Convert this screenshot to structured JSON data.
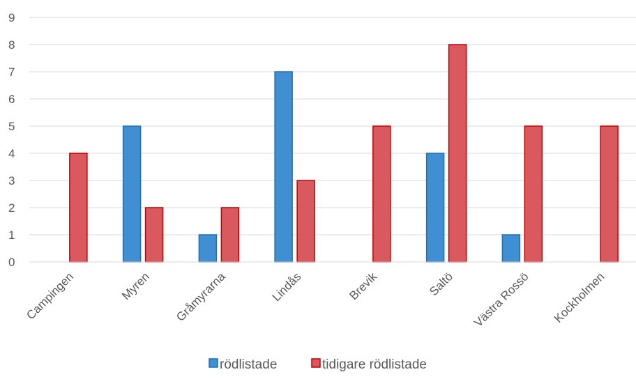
{
  "chart_data": {
    "type": "bar",
    "categories": [
      "Campingen",
      "Myren",
      "Gråmyrarna",
      "Lindås",
      "Brevik",
      "Saltö",
      "Västra Rossö",
      "Kockholmen"
    ],
    "series": [
      {
        "name": "rödlistade",
        "values": [
          0,
          5,
          1,
          7,
          0,
          4,
          1,
          0
        ],
        "color": "#3f8fd2",
        "edge": "#1f6fb2"
      },
      {
        "name": "tidigare rödlistade",
        "values": [
          4,
          2,
          2,
          3,
          5,
          8,
          5,
          5
        ],
        "color": "#d9595e",
        "edge": "#c00000"
      }
    ],
    "ylim": [
      0,
      9
    ],
    "yticks": [
      "0",
      "1",
      "2",
      "3",
      "4",
      "5",
      "6",
      "7",
      "8",
      "9"
    ],
    "grid": true,
    "legend": "bottom"
  }
}
